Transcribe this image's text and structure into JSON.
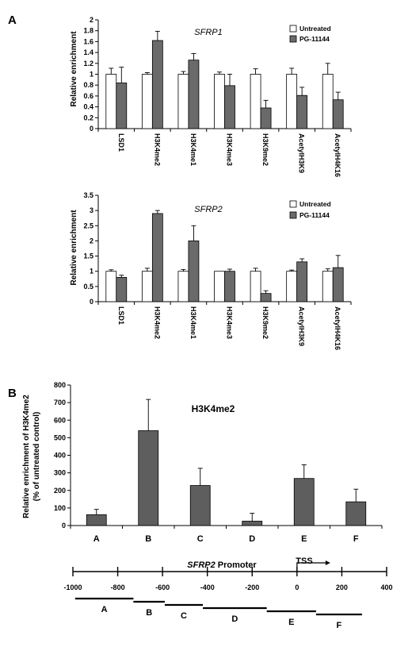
{
  "panels": {
    "a_letter": "A",
    "b_letter": "B"
  },
  "legend": {
    "untreated": "Untreated",
    "treated": "PG-11144",
    "untreated_color": "#ffffff",
    "treated_color": "#6a6a6a"
  },
  "chart_data": [
    {
      "type": "bar",
      "title": "SFRP1",
      "ylabel": "Relative enrichment",
      "ylim": [
        0,
        2
      ],
      "yticks": [
        "0",
        "0.2",
        "0.4",
        "0.6",
        "0.8",
        "1",
        "1.2",
        "1.4",
        "1.6",
        "1.8",
        "2"
      ],
      "categories": [
        "LSD1",
        "H3K4me2",
        "H3K4me1",
        "H3K4me3",
        "H3K9me2",
        "AcetylH3K9",
        "AcetylH4K16"
      ],
      "series": [
        {
          "name": "Untreated",
          "values": [
            1.0,
            1.0,
            1.0,
            1.0,
            1.0,
            1.0,
            1.0
          ],
          "errors": [
            0.11,
            0.03,
            0.05,
            0.04,
            0.1,
            0.11,
            0.2
          ]
        },
        {
          "name": "PG-11144",
          "values": [
            0.84,
            1.62,
            1.26,
            0.79,
            0.38,
            0.61,
            0.53
          ],
          "errors": [
            0.29,
            0.17,
            0.12,
            0.21,
            0.14,
            0.15,
            0.14
          ]
        }
      ],
      "grid": false,
      "legend_position": "top-right"
    },
    {
      "type": "bar",
      "title": "SFRP2",
      "ylabel": "Relative enrichment",
      "ylim": [
        0,
        3.5
      ],
      "yticks": [
        "0",
        "0.5",
        "1",
        "1.5",
        "2",
        "2.5",
        "3",
        "3.5"
      ],
      "categories": [
        "LSD1",
        "H3K4me2",
        "H3K4me1",
        "H3K4me3",
        "H3K9me2",
        "AcetylH3K9",
        "AcetylH4K16"
      ],
      "series": [
        {
          "name": "Untreated",
          "values": [
            1.0,
            1.0,
            1.0,
            1.0,
            1.0,
            1.0,
            1.0
          ],
          "errors": [
            0.05,
            0.1,
            0.06,
            0.0,
            0.1,
            0.04,
            0.08
          ]
        },
        {
          "name": "PG-11144",
          "values": [
            0.8,
            2.9,
            2.0,
            1.0,
            0.27,
            1.31,
            1.12
          ],
          "errors": [
            0.07,
            0.1,
            0.5,
            0.07,
            0.09,
            0.1,
            0.4
          ]
        }
      ],
      "grid": false,
      "legend_position": "top-right"
    },
    {
      "type": "bar",
      "title": "H3K4me2",
      "ylabel": "Relative enrichment of H3K4me2",
      "ylabel2": "(% of untreated control)",
      "ylim": [
        0,
        800
      ],
      "yticks": [
        "0",
        "100",
        "200",
        "300",
        "400",
        "500",
        "600",
        "700",
        "800"
      ],
      "categories": [
        "A",
        "B",
        "C",
        "D",
        "E",
        "F"
      ],
      "series": [
        {
          "values": [
            62,
            540,
            228,
            25,
            268,
            135
          ],
          "errors": [
            30,
            178,
            98,
            45,
            78,
            72
          ]
        }
      ],
      "grid": false
    }
  ],
  "promoter": {
    "label_italic": "SFRP2",
    "label_rest": " Promoter",
    "tss_label": "TSS",
    "axis_ticks": [
      "-1000",
      "-800",
      "-600",
      "-400",
      "-200",
      "0",
      "200",
      "400"
    ],
    "axis_tick_values": [
      -1000,
      -800,
      -600,
      -400,
      -200,
      0,
      200,
      400
    ],
    "axis_range": [
      -1000,
      400
    ],
    "regions": [
      {
        "name": "A",
        "start": -990,
        "end": -730
      },
      {
        "name": "B",
        "start": -730,
        "end": -590
      },
      {
        "name": "C",
        "start": -590,
        "end": -420
      },
      {
        "name": "D",
        "start": -420,
        "end": -135
      },
      {
        "name": "E",
        "start": -135,
        "end": 85
      },
      {
        "name": "F",
        "start": 85,
        "end": 290
      }
    ]
  }
}
